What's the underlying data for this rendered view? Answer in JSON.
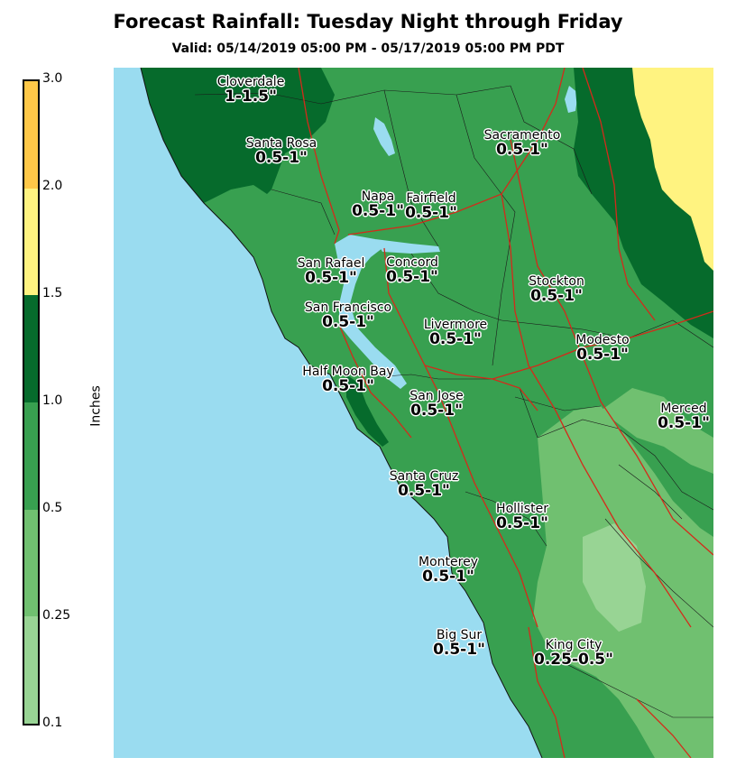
{
  "title": "Forecast Rainfall: Tuesday Night through Friday",
  "subtitle": "Valid: 05/14/2019 05:00 PM - 05/17/2019 05:00 PM PDT",
  "legend": {
    "label": "Inches",
    "ticks": [
      "3.0",
      "2.0",
      "1.5",
      "1.0",
      "0.5",
      "0.25",
      "0.1"
    ],
    "segments": [
      {
        "range": "0.1-0.25",
        "color": "#98d494"
      },
      {
        "range": "0.25-0.5",
        "color": "#70c070"
      },
      {
        "range": "0.5-1.0",
        "color": "#38a050"
      },
      {
        "range": "1.0-1.5",
        "color": "#066b2c"
      },
      {
        "range": "1.5-2.0",
        "color": "#fff380"
      },
      {
        "range": "2.0-3.0",
        "color": "#ffc848"
      }
    ]
  },
  "cities": [
    {
      "name": "Cloverdale",
      "value": "1-1.5\""
    },
    {
      "name": "Santa Rosa",
      "value": "0.5-1\""
    },
    {
      "name": "Sacramento",
      "value": "0.5-1\""
    },
    {
      "name": "Napa",
      "value": "0.5-1\""
    },
    {
      "name": "Fairfield",
      "value": "0.5-1\""
    },
    {
      "name": "San Rafael",
      "value": "0.5-1\""
    },
    {
      "name": "Concord",
      "value": "0.5-1\""
    },
    {
      "name": "Stockton",
      "value": "0.5-1\""
    },
    {
      "name": "San Francisco",
      "value": "0.5-1\""
    },
    {
      "name": "Livermore",
      "value": "0.5-1\""
    },
    {
      "name": "Modesto",
      "value": "0.5-1\""
    },
    {
      "name": "Half Moon Bay",
      "value": "0.5-1\""
    },
    {
      "name": "San Jose",
      "value": "0.5-1\""
    },
    {
      "name": "Merced",
      "value": "0.5-1\""
    },
    {
      "name": "Santa Cruz",
      "value": "0.5-1\""
    },
    {
      "name": "Hollister",
      "value": "0.5-1\""
    },
    {
      "name": "Monterey",
      "value": "0.5-1\""
    },
    {
      "name": "Big Sur",
      "value": "0.5-1\""
    },
    {
      "name": "King City",
      "value": "0.25-0.5\""
    }
  ],
  "colors": {
    "ocean": "#9adcf0",
    "highway": "#d42a1a",
    "county_line": "#1a1a1a"
  }
}
